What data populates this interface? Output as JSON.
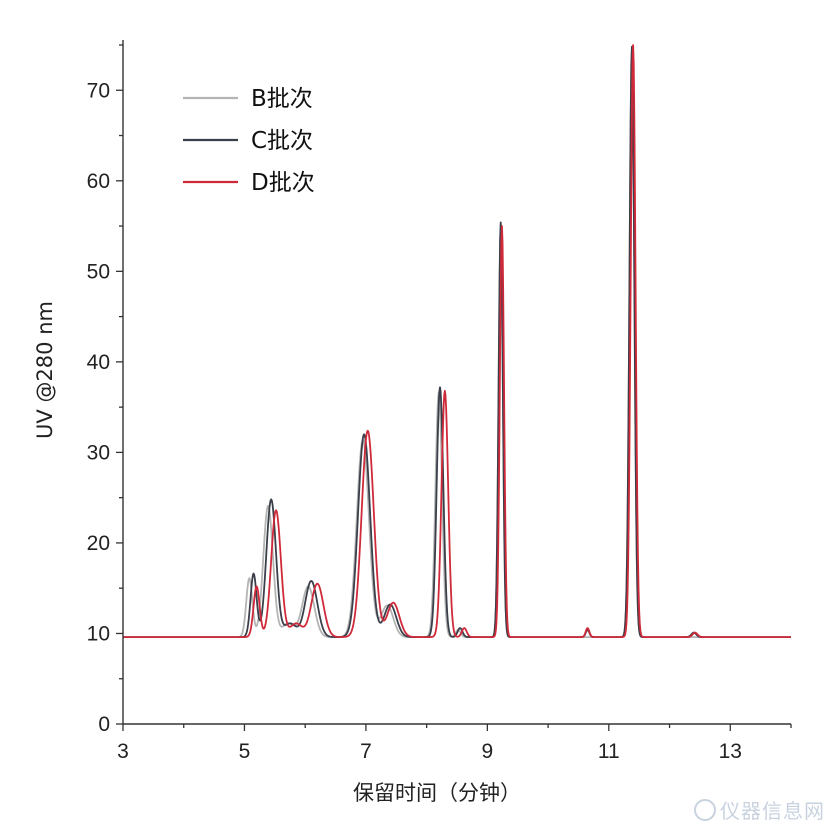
{
  "chart_data": {
    "type": "line",
    "title": "",
    "xlabel": "保留时间（分钟）",
    "ylabel": "UV @280 nm",
    "xlim": [
      3,
      14
    ],
    "ylim": [
      0,
      75
    ],
    "x_ticks": [
      3,
      5,
      7,
      9,
      11,
      13
    ],
    "y_ticks": [
      0,
      10,
      20,
      30,
      40,
      50,
      60,
      70
    ],
    "grid": false,
    "legend_position": "top-left",
    "series": [
      {
        "name": "B批次",
        "color": "#b4b4b4",
        "baseline": 9.6,
        "peaks": [
          [
            5.08,
            6.5,
            0.05
          ],
          [
            5.39,
            14.5,
            0.08
          ],
          [
            5.72,
            1.5,
            0.1
          ],
          [
            6.05,
            5.6,
            0.1
          ],
          [
            6.95,
            21.8,
            0.1
          ],
          [
            7.35,
            3.5,
            0.1
          ],
          [
            8.2,
            27.0,
            0.055
          ],
          [
            8.52,
            0.8,
            0.04
          ],
          [
            9.22,
            45.5,
            0.035
          ],
          [
            11.38,
            65.0,
            0.04
          ]
        ]
      },
      {
        "name": "C批次",
        "color": "#3a3f4a",
        "baseline": 9.6,
        "peaks": [
          [
            5.15,
            7.0,
            0.05
          ],
          [
            5.44,
            15.2,
            0.08
          ],
          [
            5.75,
            1.5,
            0.1
          ],
          [
            6.1,
            6.2,
            0.1
          ],
          [
            6.97,
            22.4,
            0.1
          ],
          [
            7.4,
            3.6,
            0.1
          ],
          [
            8.22,
            27.6,
            0.055
          ],
          [
            8.55,
            1.0,
            0.04
          ],
          [
            9.22,
            45.8,
            0.035
          ],
          [
            10.65,
            0.8,
            0.03
          ],
          [
            11.38,
            65.2,
            0.04
          ],
          [
            12.4,
            0.5,
            0.04
          ]
        ]
      },
      {
        "name": "D批次",
        "color": "#d02a3a",
        "baseline": 9.6,
        "peaks": [
          [
            5.2,
            5.6,
            0.05
          ],
          [
            5.52,
            14.0,
            0.08
          ],
          [
            5.85,
            1.5,
            0.1
          ],
          [
            6.2,
            5.9,
            0.1
          ],
          [
            7.03,
            22.8,
            0.1
          ],
          [
            7.45,
            3.8,
            0.1
          ],
          [
            8.3,
            27.2,
            0.055
          ],
          [
            8.62,
            1.0,
            0.04
          ],
          [
            9.24,
            45.4,
            0.035
          ],
          [
            10.65,
            1.0,
            0.03
          ],
          [
            11.4,
            65.4,
            0.04
          ],
          [
            12.42,
            0.5,
            0.04
          ]
        ]
      }
    ]
  },
  "watermark": {
    "text": "仪器信息网"
  }
}
